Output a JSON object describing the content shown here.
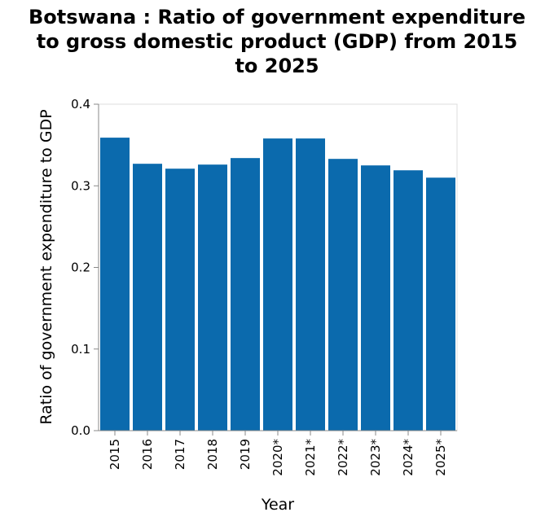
{
  "chart_data": {
    "type": "bar",
    "title_lines": [
      "Botswana : Ratio of government expenditure",
      "to gross domestic product (GDP) from 2015",
      "to 2025"
    ],
    "xlabel": "Year",
    "ylabel": "Ratio of government expenditure to GDP",
    "categories": [
      "2015",
      "2016",
      "2017",
      "2018",
      "2019",
      "2020*",
      "2021*",
      "2022*",
      "2023*",
      "2024*",
      "2025*"
    ],
    "values": [
      0.359,
      0.327,
      0.321,
      0.326,
      0.334,
      0.358,
      0.358,
      0.333,
      0.325,
      0.319,
      0.31
    ],
    "ylim": [
      0,
      0.4
    ],
    "yticks": [
      "0.0",
      "0.1",
      "0.2",
      "0.3",
      "0.4"
    ],
    "bar_color": "#0b6aad",
    "grid": false,
    "legend": "none"
  }
}
